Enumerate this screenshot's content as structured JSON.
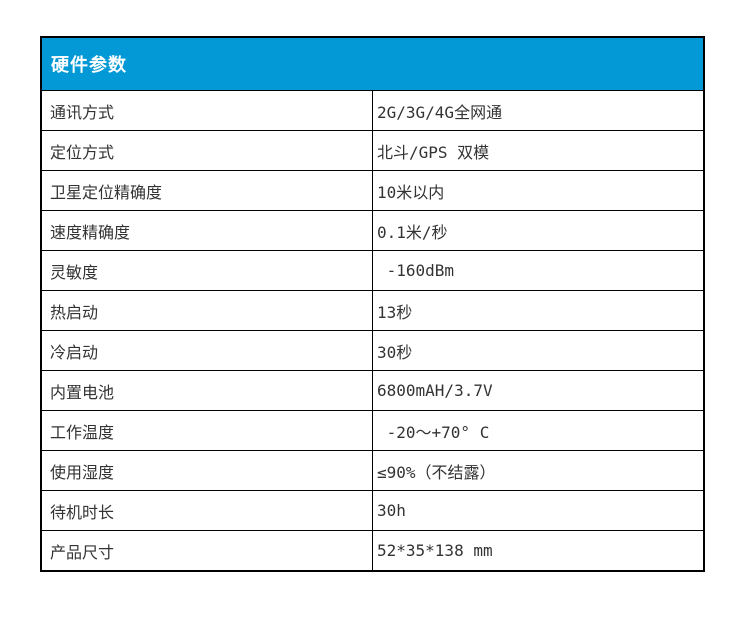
{
  "header": {
    "title": "硬件参数",
    "bg_color": "#0399d6",
    "text_color": "#ffffff"
  },
  "table": {
    "border_color": "#000000",
    "text_color": "#333333",
    "rows": [
      {
        "label": "通讯方式",
        "value": "2G/3G/4G全网通"
      },
      {
        "label": "定位方式",
        "value": "北斗/GPS 双模"
      },
      {
        "label": "卫星定位精确度",
        "value": "10米以内"
      },
      {
        "label": "速度精确度",
        "value": "0.1米/秒"
      },
      {
        "label": "灵敏度",
        "value": " -160dBm"
      },
      {
        "label": "热启动",
        "value": "13秒"
      },
      {
        "label": "冷启动",
        "value": "30秒"
      },
      {
        "label": "内置电池",
        "value": "6800mAH/3.7V"
      },
      {
        "label": "工作温度",
        "value": " -20～+70° C"
      },
      {
        "label": "使用湿度",
        "value": "≤90%（不结露）"
      },
      {
        "label": "待机时长",
        "value": "30h"
      },
      {
        "label": "产品尺寸",
        "value": "52*35*138 mm"
      }
    ]
  }
}
